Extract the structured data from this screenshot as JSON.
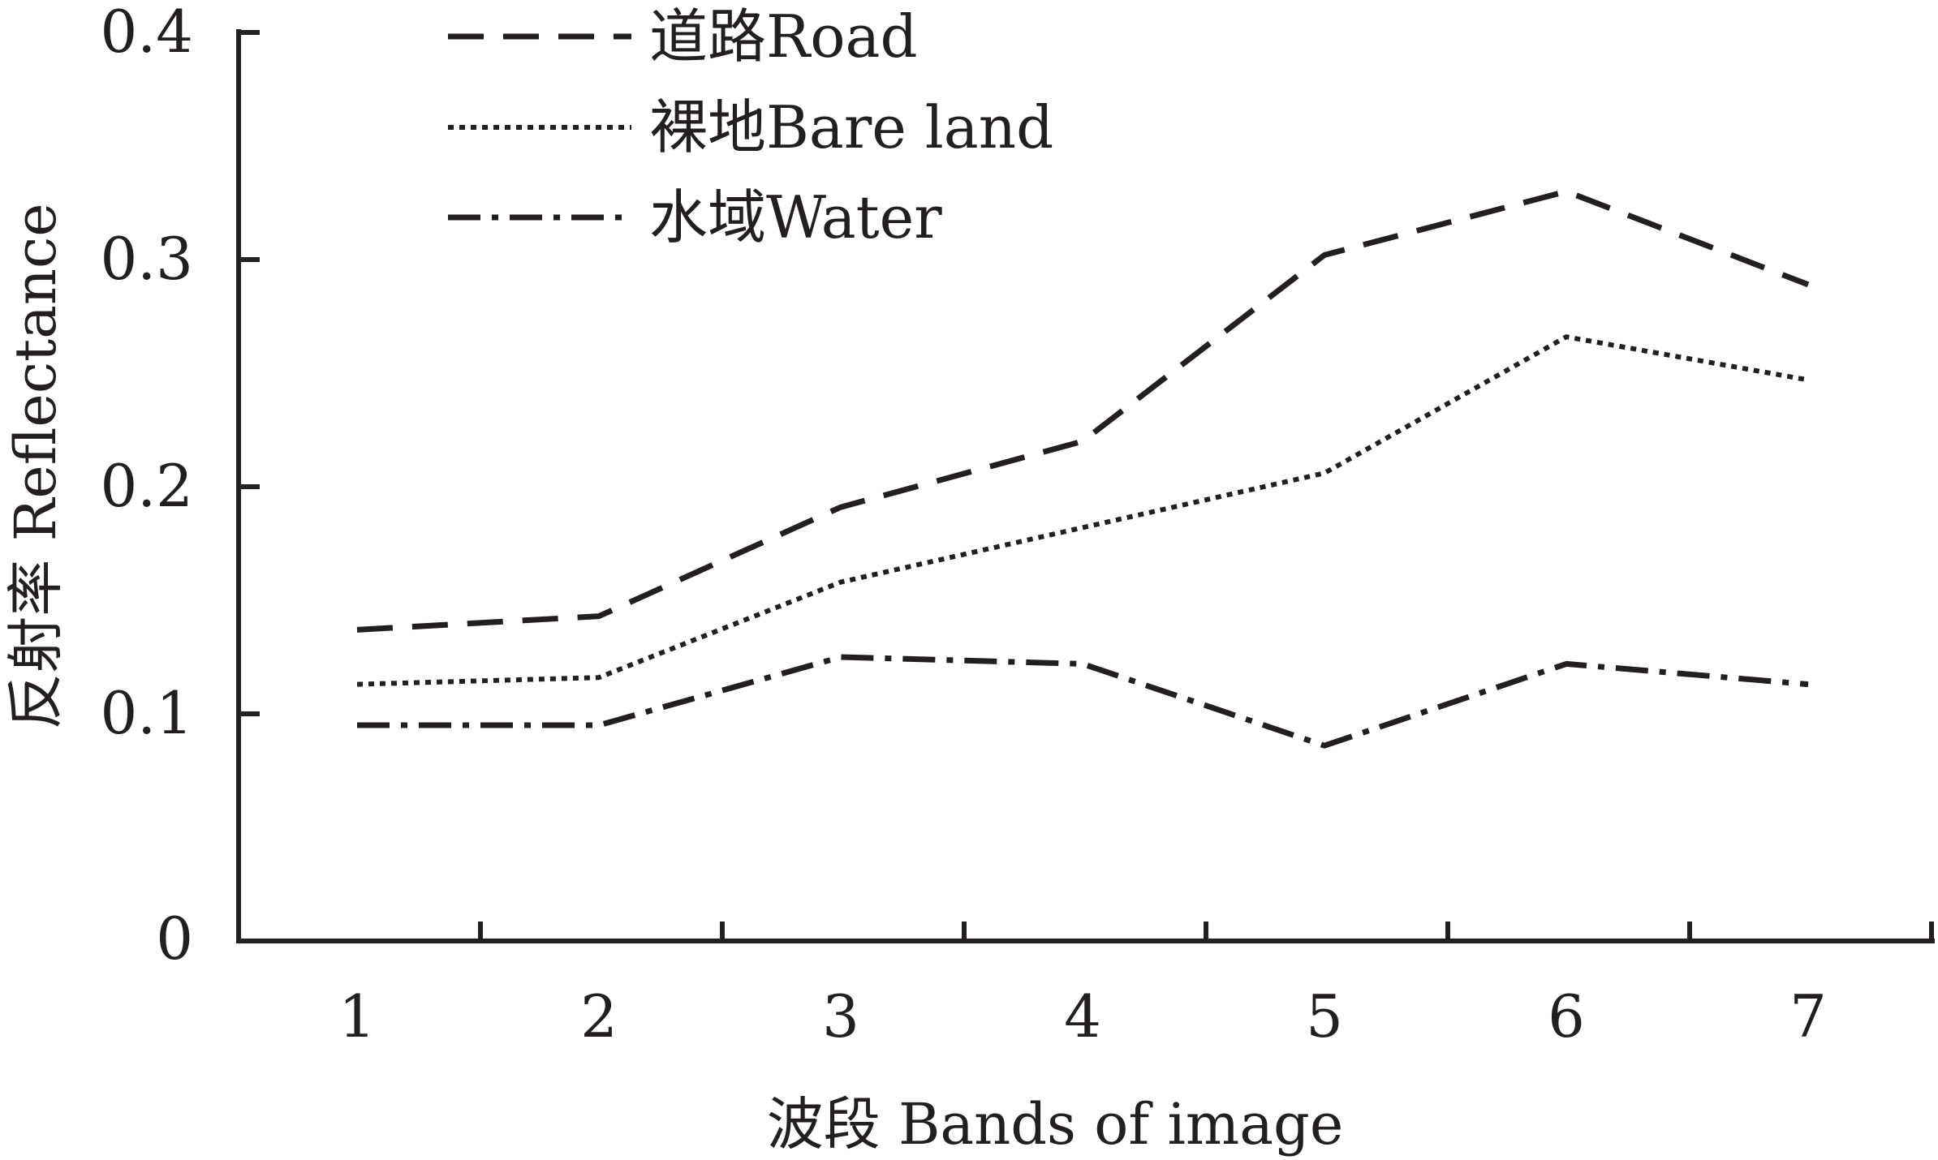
{
  "chart_data": {
    "type": "line",
    "title": "",
    "xlabel": "波段 Bands of image",
    "ylabel": "反射率 Reflectance",
    "categories": [
      "1",
      "2",
      "3",
      "4",
      "5",
      "6",
      "7"
    ],
    "x": [
      1,
      2,
      3,
      4,
      5,
      6,
      7
    ],
    "xlim": [
      0,
      7.5
    ],
    "ylim": [
      0,
      0.4
    ],
    "yticks": [
      "0",
      "0.1",
      "0.2",
      "0.3",
      "0.4"
    ],
    "ytick_values": [
      0,
      0.1,
      0.2,
      0.3,
      0.4
    ],
    "grid": false,
    "legend_position": "top-left",
    "series": [
      {
        "name": "道路Road",
        "line_style": "dashed",
        "color": "#231f20",
        "values": [
          0.137,
          0.143,
          0.191,
          0.22,
          0.302,
          0.33,
          0.289
        ]
      },
      {
        "name": "裸地Bare land",
        "line_style": "dotted",
        "color": "#231f20",
        "values": [
          0.113,
          0.116,
          0.158,
          0.182,
          0.206,
          0.266,
          0.247
        ]
      },
      {
        "name": "水域Water",
        "line_style": "dash-dot",
        "color": "#231f20",
        "values": [
          0.095,
          0.095,
          0.125,
          0.122,
          0.086,
          0.122,
          0.113
        ]
      }
    ]
  }
}
